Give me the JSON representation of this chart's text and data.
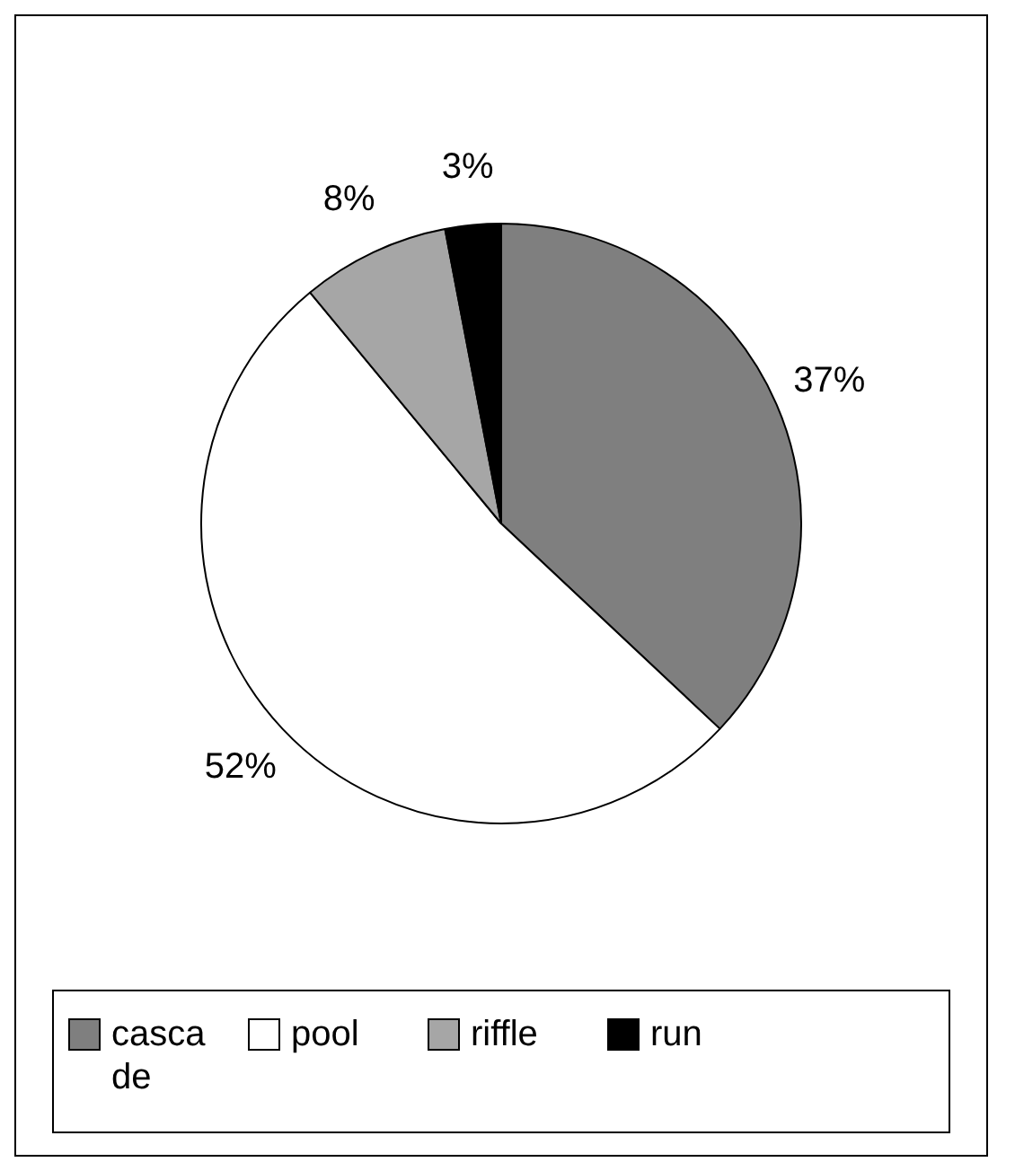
{
  "chart_data": {
    "type": "pie",
    "categories": [
      "cascade",
      "pool",
      "riffle",
      "run"
    ],
    "values": [
      37,
      52,
      8,
      3
    ],
    "colors": [
      "#7f7f7f",
      "#ffffff",
      "#a6a6a6",
      "#000000"
    ],
    "value_labels": [
      "37%",
      "52%",
      "8%",
      "3%"
    ],
    "legend": "bottom"
  }
}
